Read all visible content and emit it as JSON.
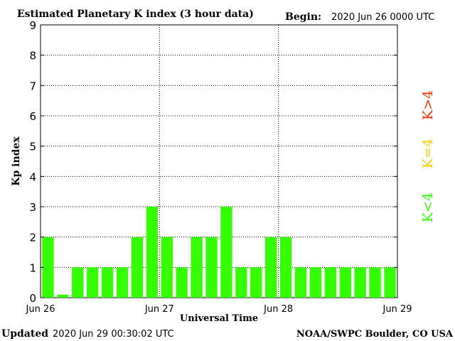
{
  "header": {
    "title": "Estimated Planetary K index (3 hour data)",
    "begin_label": "Begin:",
    "begin_value": "2020 Jun 26 0000 UTC"
  },
  "footer": {
    "updated_label": "Updated",
    "updated_value": "2020 Jun 29 00:30:02 UTC",
    "credit": "NOAA/SWPC Boulder, CO USA"
  },
  "legend": {
    "items": [
      {
        "label": "K>4",
        "color": "#ff3300"
      },
      {
        "label": "K=4",
        "color": "#ffcc00"
      },
      {
        "label": "K<4",
        "color": "#33ff00"
      }
    ]
  },
  "chart_data": {
    "type": "bar",
    "title": "Estimated Planetary K index (3 hour data)",
    "xlabel": "Universal Time",
    "ylabel": "Kp index",
    "ylim": [
      0,
      9
    ],
    "yticks": [
      0,
      1,
      2,
      3,
      4,
      5,
      6,
      7,
      8,
      9
    ],
    "xtick_labels": [
      "Jun 26",
      "Jun 27",
      "Jun 28",
      "Jun 29"
    ],
    "grid": true,
    "bar_color": "#33ff00",
    "values": [
      2,
      0.1,
      1,
      1,
      1,
      1,
      2,
      3,
      2,
      1,
      2,
      2,
      3,
      1,
      1,
      2,
      2,
      1,
      1,
      1,
      1,
      1,
      1,
      1
    ]
  }
}
